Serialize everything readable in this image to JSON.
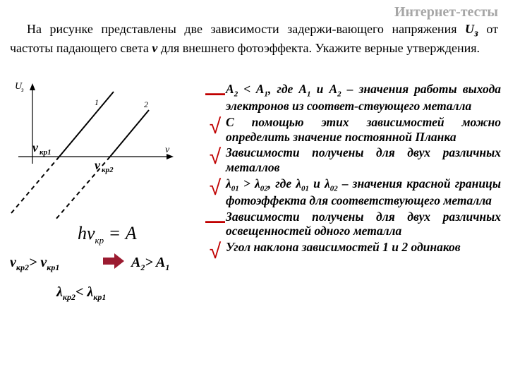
{
  "header": "Интернет-тесты",
  "intro_parts": {
    "p1": "На рисунке представлены две зависимости задержи-вающего напряжения ",
    "uvar": "U",
    "usub": "з",
    "p2": " от частоты падающего света ",
    "vvar": "v",
    "p3": " для внешнего фотоэффекта. Укажите верные утверждения."
  },
  "diagram": {
    "y_label": "U",
    "y_sub": "з",
    "x_label": "v",
    "line1": "1",
    "line2": "2",
    "vkr1": "v",
    "vkr1_sub": "кр1",
    "vkr2": "v",
    "vkr2_sub": "кр2",
    "colors": {
      "axis": "#000000",
      "line": "#000000",
      "accent": "#9b1b30"
    }
  },
  "equation": {
    "h": "h",
    "nu": "ν",
    "sub": "кр",
    "eq": " = ",
    "A": "A"
  },
  "inequalities": {
    "i1_a": "v",
    "i1_as": "кр2",
    "i1_op": "> ",
    "i1_b": "v",
    "i1_bs": "кр1",
    "i2_a": "A",
    "i2_as": "2",
    "i2_op": "> ",
    "i2_b": "A",
    "i2_bs": "1",
    "i3_a": "λ",
    "i3_as": "кр2",
    "i3_op": "< ",
    "i3_b": "λ",
    "i3_bs": "кр1"
  },
  "arrow_color": "#9b1b30",
  "answers": [
    {
      "mark": "—",
      "correct": false,
      "html": "A<sub>2</sub> &lt; A<sub>1</sub>, где A<sub>1</sub> и A<sub>2</sub> – значения работы выхода электронов из соответ-ствующего металла"
    },
    {
      "mark": "√",
      "correct": true,
      "html": "С помощью этих зависимостей можно определить значение постоянной Планка"
    },
    {
      "mark": "√",
      "correct": true,
      "html": "Зависимости получены для двух различных металлов"
    },
    {
      "mark": "√",
      "correct": true,
      "html": "λ<sub>01</sub> &gt; λ<sub>02</sub>, где λ<sub>01</sub> и λ<sub>02</sub> – значения красной границы фотоэффекта для соответствующего металла"
    },
    {
      "mark": "—",
      "correct": false,
      "html": "Зависимости получены для двух различных освещенностей одного металла"
    },
    {
      "mark": "√",
      "correct": true,
      "html": "Угол наклона зависимостей 1 и 2 одинаков"
    }
  ]
}
